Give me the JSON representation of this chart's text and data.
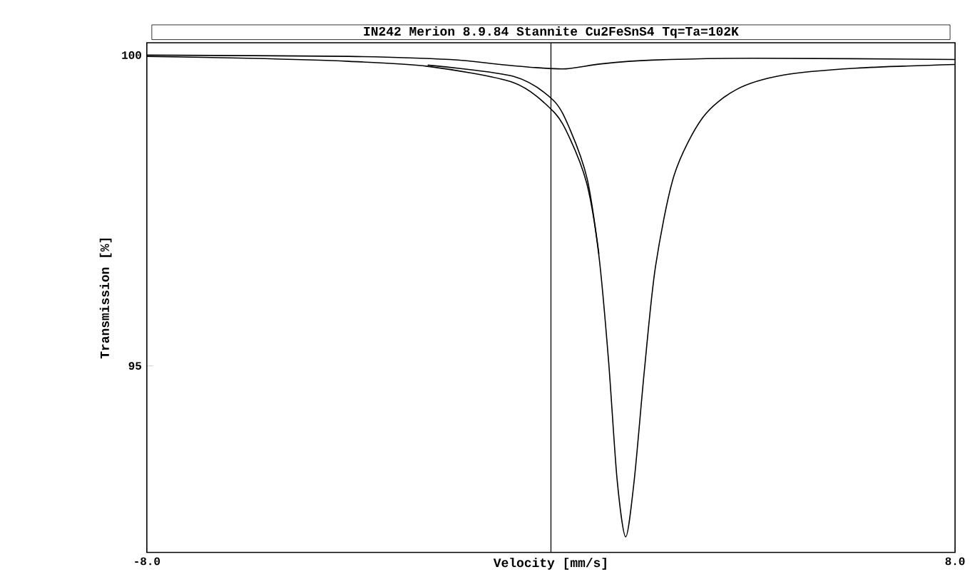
{
  "chart_data": {
    "type": "line",
    "title": "IN242 Merion 8.9.84 Stannite Cu2FeSnS4 Tq=Ta=102K",
    "xlabel": "Velocity [mm/s]",
    "ylabel": "Transmission [%]",
    "xlim": [
      -8,
      8
    ],
    "ylim": [
      92,
      100.2
    ],
    "xticks": [
      {
        "value": -8,
        "label": "-8.0"
      },
      {
        "value": 8,
        "label": "8.0"
      }
    ],
    "yticks": [
      95,
      100
    ],
    "marker": "none",
    "line_style": "solid",
    "grid": false,
    "ref_lines": [
      {
        "axis": "x",
        "value": 0,
        "color": "#000000"
      }
    ],
    "series": [
      {
        "color": "#000000",
        "x": [
          -8,
          -6,
          -4,
          -2.44,
          -0.75,
          0.04,
          0.38,
          0.72,
          0.95,
          1.14,
          1.31,
          1.48,
          1.65,
          1.85,
          2.07,
          2.44,
          3.0,
          3.68,
          4.61,
          6.03,
          8
        ],
        "values": [
          99.98,
          99.95,
          99.9,
          99.82,
          99.56,
          99.1,
          98.65,
          97.9,
          96.77,
          95.09,
          93.17,
          92.25,
          93.17,
          94.93,
          96.6,
          98.07,
          98.99,
          99.45,
          99.68,
          99.79,
          99.85
        ]
      },
      {
        "color": "#000000",
        "x": [
          -2.44,
          -0.75,
          0.04,
          0.38,
          0.72,
          0.95
        ],
        "values": [
          99.84,
          99.66,
          99.28,
          98.8,
          98.0,
          96.8
        ]
      },
      {
        "color": "#000000",
        "x": [
          -8,
          -4,
          -2,
          -1,
          -0.3,
          0.3,
          1,
          2,
          4,
          8
        ],
        "values": [
          100.0,
          99.98,
          99.93,
          99.85,
          99.8,
          99.78,
          99.86,
          99.92,
          99.95,
          99.93
        ]
      }
    ]
  }
}
